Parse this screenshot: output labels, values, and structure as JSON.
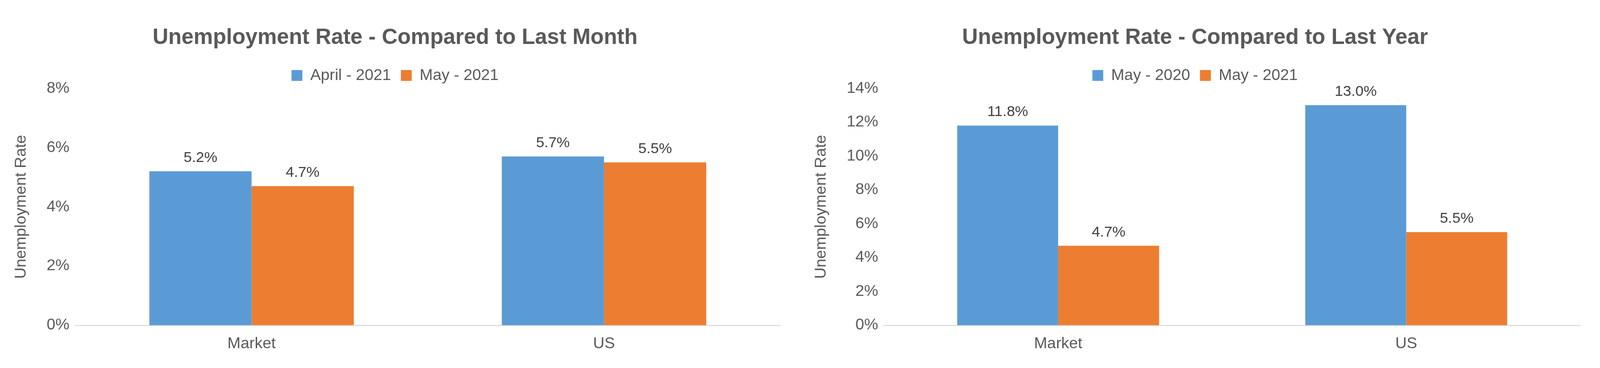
{
  "chart_data": [
    {
      "type": "bar",
      "title": "Unemployment Rate - Compared to Last Month",
      "y_label": "Unemployment Rate",
      "categories": [
        "Market",
        "US"
      ],
      "series": [
        {
          "name": "April - 2021",
          "color": "#5b9bd5",
          "values": [
            5.2,
            5.7
          ],
          "value_labels": [
            "5.2%",
            "5.7%"
          ]
        },
        {
          "name": "May - 2021",
          "color": "#ed7d31",
          "values": [
            4.7,
            5.5
          ],
          "value_labels": [
            "4.7%",
            "5.5%"
          ]
        }
      ],
      "ylim": [
        0,
        8
      ],
      "yticks": [
        {
          "value": 0,
          "label": "0%"
        },
        {
          "value": 2,
          "label": "2%"
        },
        {
          "value": 4,
          "label": "4%"
        },
        {
          "value": 6,
          "label": "6%"
        },
        {
          "value": 8,
          "label": "8%"
        }
      ],
      "grid": false,
      "legend": "top",
      "data_labels": true
    },
    {
      "type": "bar",
      "title": "Unemployment Rate - Compared to Last Year",
      "y_label": "Unemployment Rate",
      "categories": [
        "Market",
        "US"
      ],
      "series": [
        {
          "name": "May - 2020",
          "color": "#5b9bd5",
          "values": [
            11.8,
            13.0
          ],
          "value_labels": [
            "11.8%",
            "13.0%"
          ]
        },
        {
          "name": "May - 2021",
          "color": "#ed7d31",
          "values": [
            4.7,
            5.5
          ],
          "value_labels": [
            "4.7%",
            "5.5%"
          ]
        }
      ],
      "ylim": [
        0,
        14
      ],
      "yticks": [
        {
          "value": 0,
          "label": "0%"
        },
        {
          "value": 2,
          "label": "2%"
        },
        {
          "value": 4,
          "label": "4%"
        },
        {
          "value": 6,
          "label": "6%"
        },
        {
          "value": 8,
          "label": "8%"
        },
        {
          "value": 10,
          "label": "10%"
        },
        {
          "value": 12,
          "label": "12%"
        },
        {
          "value": 14,
          "label": "14%"
        }
      ],
      "grid": false,
      "legend": "top",
      "data_labels": true
    }
  ]
}
